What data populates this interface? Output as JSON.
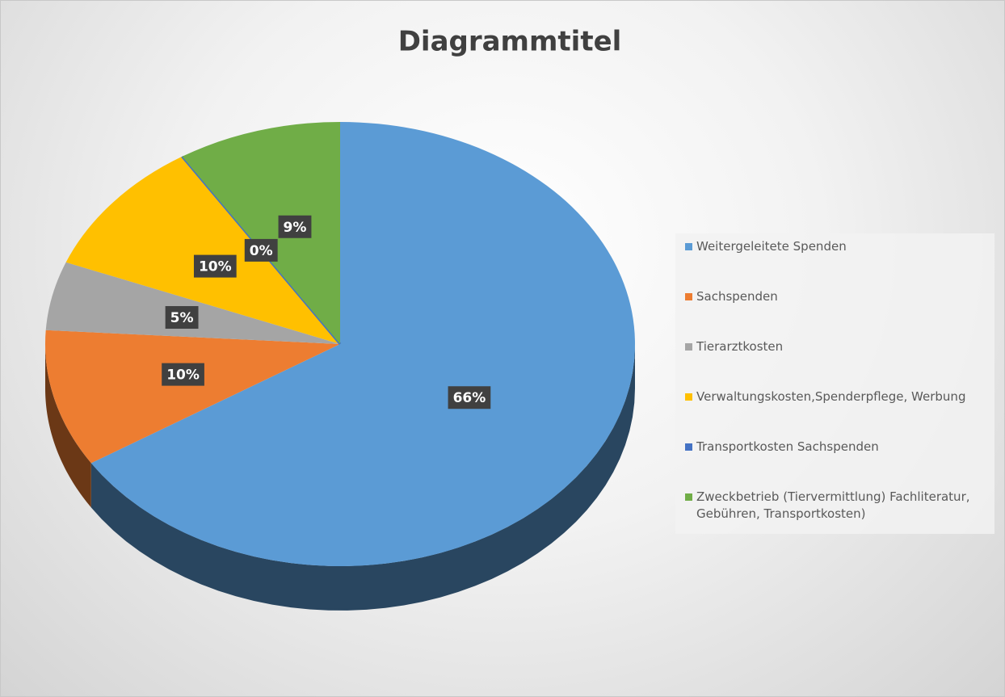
{
  "chart_data": {
    "type": "pie",
    "title": "Diagrammtitel",
    "categories": [
      "Weitergeleitete Spenden",
      "Sachspenden",
      "Tierarztkosten",
      "Verwaltungskosten,Spenderpflege, Werbung",
      "Transportkosten Sachspenden",
      "Zweckbetrieb (Tiervermittlung) Fachliteratur, Gebühren, Transportkosten)"
    ],
    "values": [
      66,
      10,
      5,
      10,
      0,
      9
    ],
    "value_labels": [
      "66%",
      "10%",
      "5%",
      "10%",
      "0%",
      "9%"
    ],
    "colors": [
      "#5b9bd5",
      "#ed7d31",
      "#a5a5a5",
      "#ffc000",
      "#4472c4",
      "#70ad47"
    ],
    "legend": "right"
  }
}
